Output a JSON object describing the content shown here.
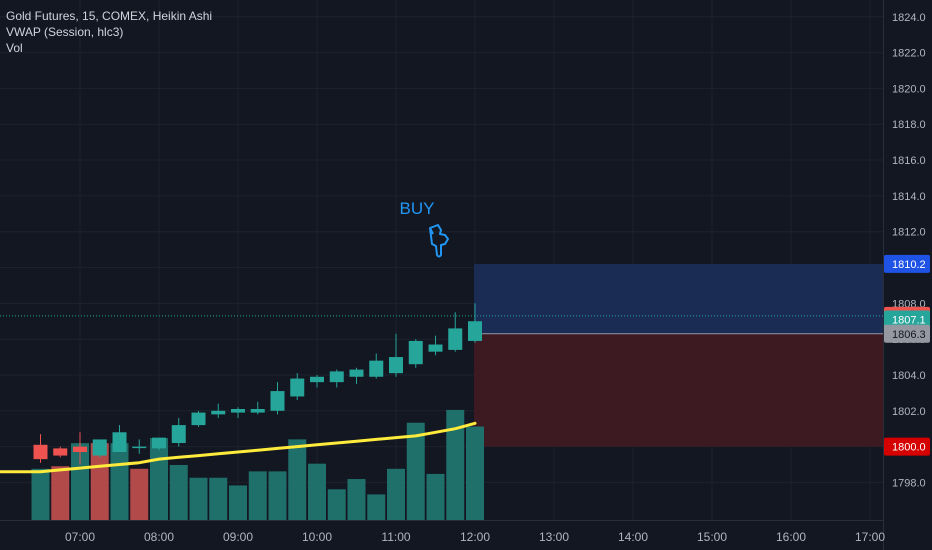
{
  "legend": {
    "title": "Gold Futures, 15, COMEX, Heikin Ashi",
    "vwap": "VWAP (Session, hlc3)",
    "vol": "Vol"
  },
  "annotation": {
    "label": "BUY",
    "icon": "hand-pointing-down-icon",
    "color": "#2196f3"
  },
  "colors": {
    "background": "#131722",
    "grid": "#1e222d",
    "up": "#26a69a",
    "down": "#ef5350",
    "vol_up": "#1f6f6a",
    "vol_down": "#b24a49",
    "vwap": "#ffeb3b",
    "target_zone": "#1a2b54",
    "stop_zone": "#3d1a22",
    "axis_text": "#b2b5be"
  },
  "chart_data": {
    "type": "candlestick",
    "x_ticks": [
      "07:00",
      "08:00",
      "09:00",
      "10:00",
      "11:00",
      "12:00",
      "13:00",
      "14:00",
      "15:00",
      "16:00",
      "17:00"
    ],
    "y_ticks": [
      1798.0,
      1800.0,
      1802.0,
      1804.0,
      1806.0,
      1808.0,
      1810.0,
      1812.0,
      1814.0,
      1816.0,
      1818.0,
      1820.0,
      1822.0,
      1824.0
    ],
    "ylim": [
      1796.4,
      1825.2
    ],
    "candles": [
      {
        "t": "06:30",
        "o": 1800.1,
        "h": 1800.7,
        "l": 1799.1,
        "c": 1799.3
      },
      {
        "t": "06:45",
        "o": 1799.9,
        "h": 1800.0,
        "l": 1799.4,
        "c": 1799.5
      },
      {
        "t": "07:00",
        "o": 1800.0,
        "h": 1800.8,
        "l": 1799.0,
        "c": 1799.7
      },
      {
        "t": "07:15",
        "o": 1799.5,
        "h": 1800.3,
        "l": 1799.4,
        "c": 1800.4
      },
      {
        "t": "07:30",
        "o": 1799.7,
        "h": 1801.2,
        "l": 1799.7,
        "c": 1800.8
      },
      {
        "t": "07:45",
        "o": 1800.0,
        "h": 1800.4,
        "l": 1799.6,
        "c": 1800.0
      },
      {
        "t": "08:00",
        "o": 1799.9,
        "h": 1800.5,
        "l": 1799.8,
        "c": 1800.5
      },
      {
        "t": "08:15",
        "o": 1800.2,
        "h": 1801.6,
        "l": 1800.0,
        "c": 1801.2
      },
      {
        "t": "08:30",
        "o": 1801.2,
        "h": 1802.0,
        "l": 1801.1,
        "c": 1801.9
      },
      {
        "t": "08:45",
        "o": 1801.8,
        "h": 1802.4,
        "l": 1801.6,
        "c": 1802.0
      },
      {
        "t": "09:00",
        "o": 1801.9,
        "h": 1802.2,
        "l": 1801.6,
        "c": 1802.1
      },
      {
        "t": "09:15",
        "o": 1801.9,
        "h": 1802.5,
        "l": 1801.8,
        "c": 1802.1
      },
      {
        "t": "09:30",
        "o": 1802.0,
        "h": 1803.6,
        "l": 1801.8,
        "c": 1803.1
      },
      {
        "t": "09:45",
        "o": 1802.8,
        "h": 1804.1,
        "l": 1802.6,
        "c": 1803.8
      },
      {
        "t": "10:00",
        "o": 1803.6,
        "h": 1804.0,
        "l": 1803.3,
        "c": 1803.9
      },
      {
        "t": "10:15",
        "o": 1803.6,
        "h": 1804.3,
        "l": 1803.3,
        "c": 1804.2
      },
      {
        "t": "10:30",
        "o": 1803.9,
        "h": 1804.4,
        "l": 1803.5,
        "c": 1804.3
      },
      {
        "t": "10:45",
        "o": 1803.9,
        "h": 1805.2,
        "l": 1803.8,
        "c": 1804.8
      },
      {
        "t": "11:00",
        "o": 1804.1,
        "h": 1806.3,
        "l": 1803.9,
        "c": 1805.0
      },
      {
        "t": "11:15",
        "o": 1804.6,
        "h": 1806.0,
        "l": 1804.4,
        "c": 1805.9
      },
      {
        "t": "11:30",
        "o": 1805.3,
        "h": 1806.2,
        "l": 1805.1,
        "c": 1805.7
      },
      {
        "t": "11:45",
        "o": 1805.4,
        "h": 1807.5,
        "l": 1805.3,
        "c": 1806.6
      },
      {
        "t": "12:00",
        "o": 1805.9,
        "h": 1808.0,
        "l": 1805.8,
        "c": 1807.0
      }
    ],
    "volume_up": [
      true,
      false,
      true,
      false,
      true,
      false,
      true,
      true,
      true,
      true,
      true,
      true,
      true,
      true,
      true,
      true,
      true,
      true,
      true,
      true,
      true,
      true,
      true
    ],
    "volume_rel": [
      0.4,
      0.42,
      0.6,
      0.6,
      0.6,
      0.4,
      0.64,
      0.43,
      0.33,
      0.33,
      0.27,
      0.38,
      0.38,
      0.63,
      0.44,
      0.24,
      0.32,
      0.2,
      0.4,
      0.76,
      0.36,
      0.86,
      0.73
    ],
    "vwap": [
      1798.6,
      1798.7,
      1798.8,
      1798.9,
      1799.0,
      1799.1,
      1799.3,
      1799.4,
      1799.5,
      1799.6,
      1799.7,
      1799.8,
      1799.9,
      1800.0,
      1800.1,
      1800.2,
      1800.3,
      1800.4,
      1800.5,
      1800.6,
      1800.8,
      1801.0,
      1801.3
    ],
    "position": {
      "target": 1810.2,
      "entry": 1806.3,
      "stop": 1800.0,
      "start_time": "12:00",
      "end_time": "17:00"
    },
    "last_price": 1807.3,
    "price_labels": [
      {
        "value": 1810.2,
        "text": "1810.2",
        "bg": "#1e53e5",
        "fg": "#ffffff"
      },
      {
        "value": 1807.3,
        "text": "1807.3",
        "bg": "#ef5350",
        "fg": "#ffffff"
      },
      {
        "value": 1807.1,
        "text": "1807.1",
        "bg": "#26a69a",
        "fg": "#ffffff"
      },
      {
        "value": 1806.3,
        "text": "1806.3",
        "bg": "#9598a1",
        "fg": "#131722"
      },
      {
        "value": 1800.0,
        "text": "1800.0",
        "bg": "#d50000",
        "fg": "#ffffff"
      }
    ]
  }
}
